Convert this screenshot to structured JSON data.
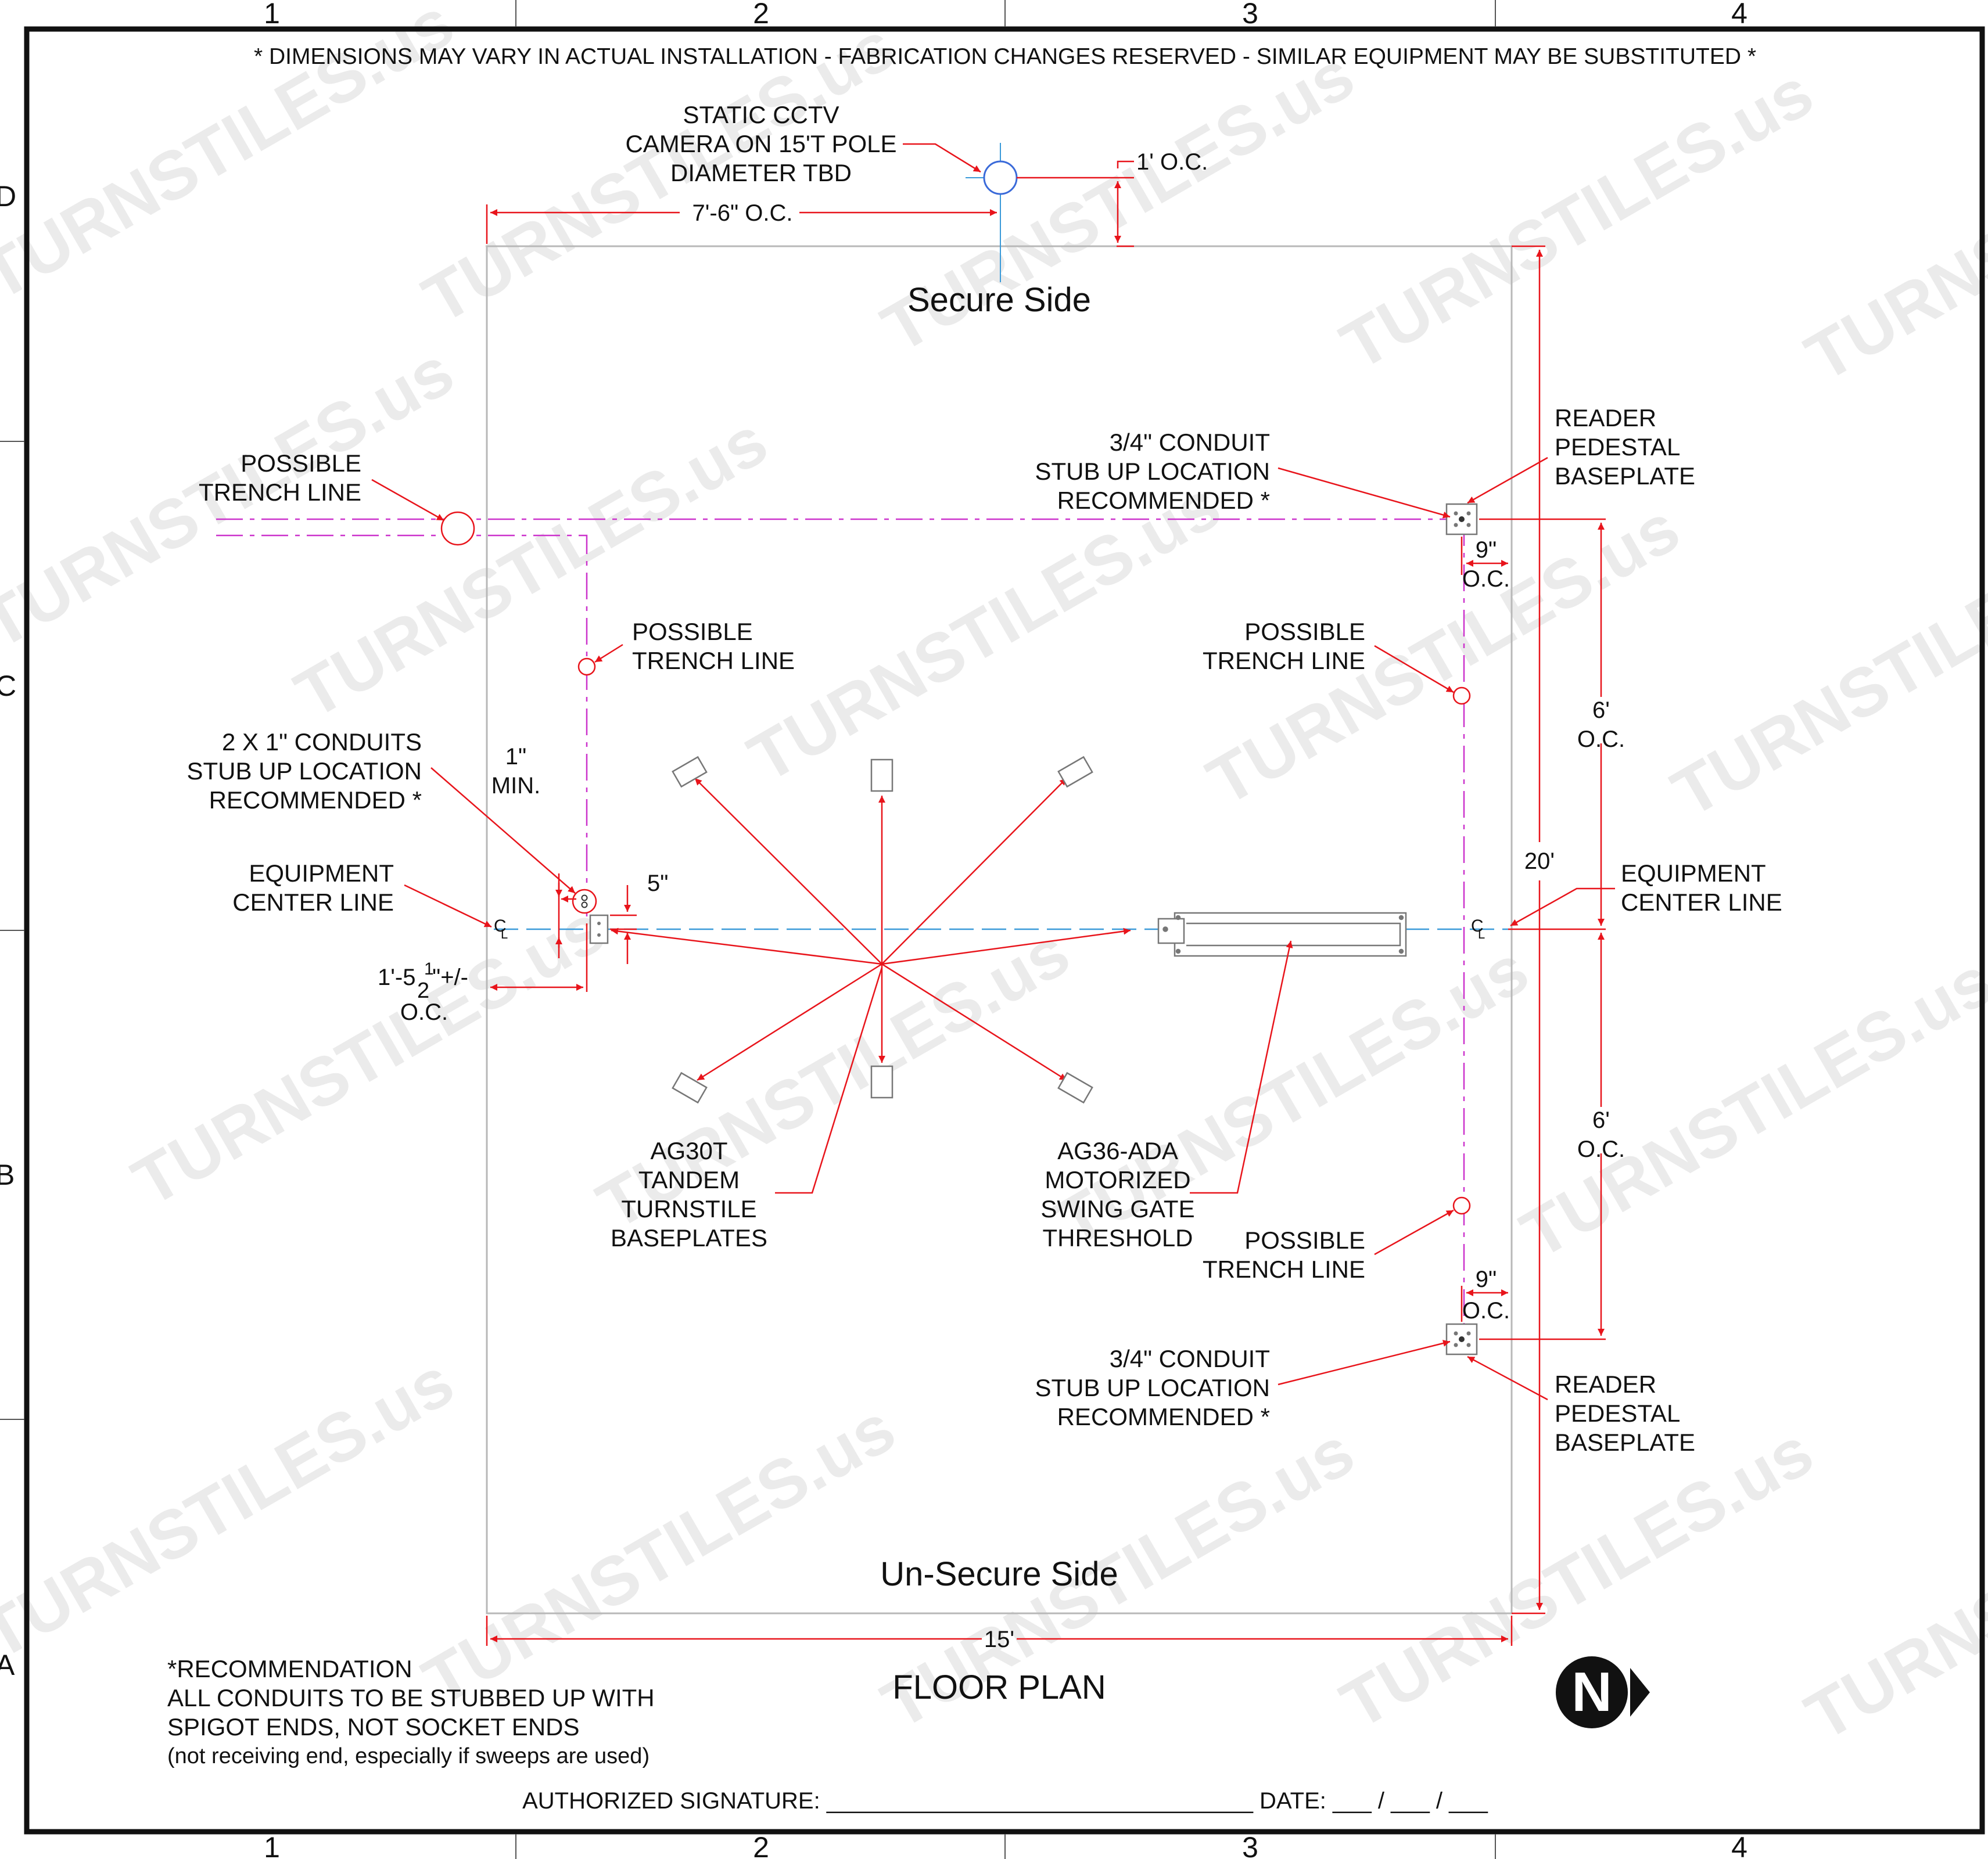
{
  "header_note": "* DIMENSIONS MAY VARY IN ACTUAL INSTALLATION - FABRICATION CHANGES RESERVED - SIMILAR EQUIPMENT MAY BE SUBSTITUTED *",
  "grid": {
    "columns": [
      "1",
      "2",
      "3",
      "4"
    ],
    "rows": [
      "D",
      "C",
      "B",
      "A"
    ]
  },
  "areas": {
    "secure": "Secure Side",
    "unsecure": "Un-Secure Side"
  },
  "title": "FLOOR PLAN",
  "camera": {
    "l1": "STATIC CCTV",
    "l2": "CAMERA ON 15'T POLE",
    "l3": "DIAMETER TBD"
  },
  "dims": {
    "cam_oc": "1' O.C.",
    "cam_offset": "7'-6\" O.C.",
    "reader_top_l1": "9\"",
    "reader_top_l2": "O.C.",
    "reader_bot_l1": "9\"",
    "reader_bot_l2": "O.C.",
    "six_top_l1": "6'",
    "six_top_l2": "O.C.",
    "six_bot_l1": "6'",
    "six_bot_l2": "O.C.",
    "twenty": "20'",
    "fifteen": "15'",
    "min_l1": "1\"",
    "min_l2": "MIN.",
    "five": "5\"",
    "left_offset_a": "1'-5",
    "left_offset_num": "1",
    "left_offset_den": "2",
    "left_offset_b": "\"+/-",
    "left_offset_l2": "O.C."
  },
  "labels": {
    "trench_left_l1": "POSSIBLE",
    "trench_left_l2": "TRENCH LINE",
    "trench_mid_l1": "POSSIBLE",
    "trench_mid_l2": "TRENCH LINE",
    "trench_right_top_l1": "POSSIBLE",
    "trench_right_top_l2": "TRENCH LINE",
    "trench_right_bot_l1": "POSSIBLE",
    "trench_right_bot_l2": "TRENCH LINE",
    "conduits_l1": "2 X 1\" CONDUITS",
    "conduits_l2": "STUB UP LOCATION",
    "conduits_l3": "RECOMMENDED *",
    "conduit_top_l1": "3/4\" CONDUIT",
    "conduit_top_l2": "STUB UP LOCATION",
    "conduit_top_l3": "RECOMMENDED *",
    "conduit_bot_l1": "3/4\" CONDUIT",
    "conduit_bot_l2": "STUB UP LOCATION",
    "conduit_bot_l3": "RECOMMENDED *",
    "reader_top_l1": "READER",
    "reader_top_l2": "PEDESTAL",
    "reader_top_l3": "BASEPLATE",
    "reader_bot_l1": "READER",
    "reader_bot_l2": "PEDESTAL",
    "reader_bot_l3": "BASEPLATE",
    "ecl_left_l1": "EQUIPMENT",
    "ecl_left_l2": "CENTER LINE",
    "ecl_right_l1": "EQUIPMENT",
    "ecl_right_l2": "CENTER LINE",
    "turnstile_l1": "AG30T",
    "turnstile_l2": "TANDEM",
    "turnstile_l3": "TURNSTILE",
    "turnstile_l4": "BASEPLATES",
    "gate_l1": "AG36-ADA",
    "gate_l2": "MOTORIZED",
    "gate_l3": "SWING GATE",
    "gate_l4": "THRESHOLD",
    "cl_c": "C",
    "cl_l": "L"
  },
  "recommendation": {
    "l1": "*RECOMMENDATION",
    "l2": "ALL CONDUITS TO BE STUBBED UP WITH",
    "l3": "SPIGOT ENDS, NOT SOCKET ENDS",
    "l4": "(not receiving end, especially if sweeps are used)"
  },
  "signature": "AUTHORIZED SIGNATURE: _________________________________ DATE: ___ / ___ / ___",
  "north_symbol": "N",
  "watermark": "TURNSTILES.us",
  "colors": {
    "dimension": "#e8141b",
    "trench": "#cc33cc",
    "centerline": "#3a9ad9",
    "outline": "#b0b0b0",
    "watermark": "#dcdcdc"
  }
}
